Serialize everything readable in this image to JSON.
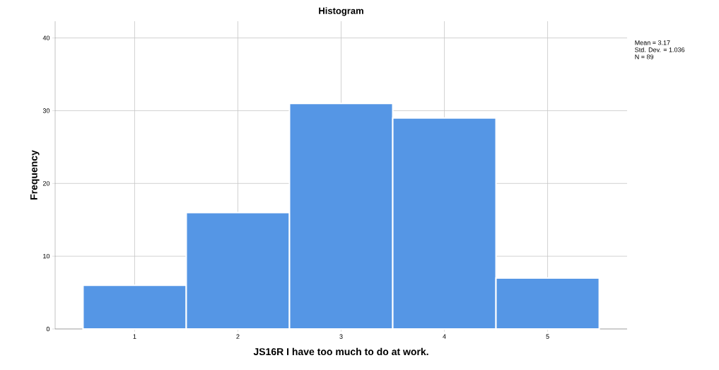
{
  "chart_data": {
    "type": "histogram",
    "title": "Histogram",
    "xlabel": "JS16R  I have too much to do at work.",
    "ylabel": "Frequency",
    "bins": [
      0.5,
      1.5,
      2.5,
      3.5,
      4.5,
      5.5
    ],
    "values": [
      6,
      16,
      31,
      29,
      7
    ],
    "color": "#5596e5",
    "xlim": [
      0.23,
      5.77
    ],
    "ylim": [
      0,
      42.3
    ],
    "xticks": [
      1,
      2,
      3,
      4,
      5
    ],
    "yticks": [
      0,
      10,
      20,
      30,
      40
    ],
    "grid": true,
    "annotations": [
      "Mean = 3.17",
      "Std. Dev. = 1.036",
      "N = 89"
    ]
  }
}
